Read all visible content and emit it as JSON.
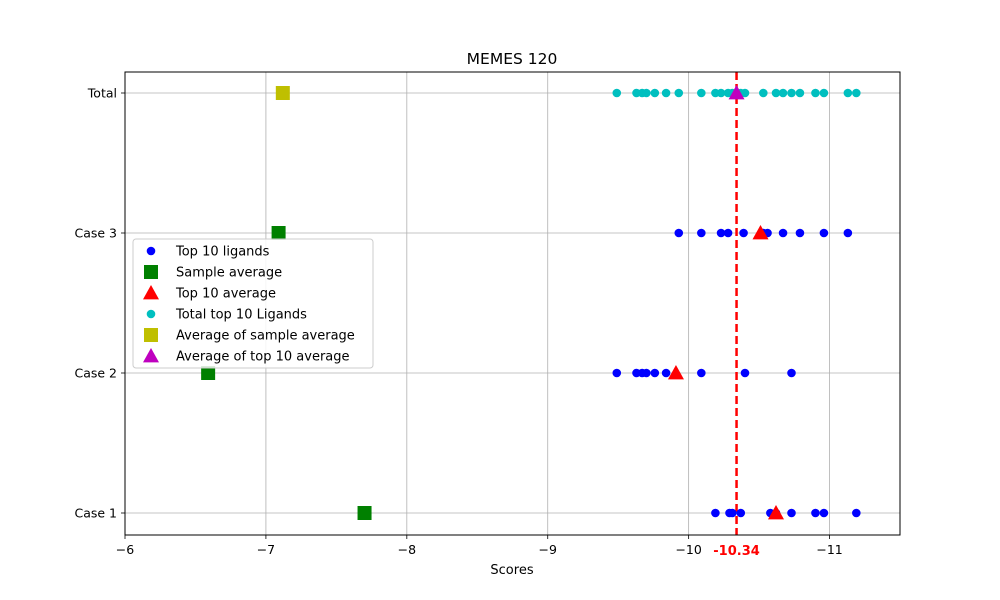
{
  "chart_data": {
    "type": "scatter",
    "title": "MEMES 120",
    "xlabel": "Scores",
    "ylabel": "",
    "xlim": [
      -6,
      -11.5
    ],
    "x_axis_inverted": true,
    "x_ticks": [
      -6,
      -7,
      -8,
      -9,
      -10,
      -11
    ],
    "x_tick_labels": [
      "−6",
      "−7",
      "−8",
      "−9",
      "−10",
      "−11"
    ],
    "categories": [
      "Case 1",
      "Case 2",
      "Case 3",
      "Total"
    ],
    "grid": true,
    "legend_position": "center-left",
    "reference_line": {
      "x": -10.34,
      "label": "-10.34",
      "color": "#ff0000",
      "style": "dashed"
    },
    "series": [
      {
        "name": "Top 10 ligands",
        "marker": "circle",
        "color": "#0000ff",
        "points": [
          {
            "category": "Case 1",
            "x": -10.19
          },
          {
            "category": "Case 1",
            "x": -10.29
          },
          {
            "category": "Case 1",
            "x": -10.31
          },
          {
            "category": "Case 1",
            "x": -10.37
          },
          {
            "category": "Case 1",
            "x": -10.58
          },
          {
            "category": "Case 1",
            "x": -10.62
          },
          {
            "category": "Case 1",
            "x": -10.73
          },
          {
            "category": "Case 1",
            "x": -10.9
          },
          {
            "category": "Case 1",
            "x": -10.96
          },
          {
            "category": "Case 1",
            "x": -11.19
          },
          {
            "category": "Case 2",
            "x": -9.49
          },
          {
            "category": "Case 2",
            "x": -9.63
          },
          {
            "category": "Case 2",
            "x": -9.67
          },
          {
            "category": "Case 2",
            "x": -9.7
          },
          {
            "category": "Case 2",
            "x": -9.76
          },
          {
            "category": "Case 2",
            "x": -9.84
          },
          {
            "category": "Case 2",
            "x": -10.09
          },
          {
            "category": "Case 2",
            "x": -10.4
          },
          {
            "category": "Case 2",
            "x": -10.73
          },
          {
            "category": "Case 3",
            "x": -9.93
          },
          {
            "category": "Case 3",
            "x": -10.09
          },
          {
            "category": "Case 3",
            "x": -10.23
          },
          {
            "category": "Case 3",
            "x": -10.28
          },
          {
            "category": "Case 3",
            "x": -10.39
          },
          {
            "category": "Case 3",
            "x": -10.53
          },
          {
            "category": "Case 3",
            "x": -10.56
          },
          {
            "category": "Case 3",
            "x": -10.67
          },
          {
            "category": "Case 3",
            "x": -10.79
          },
          {
            "category": "Case 3",
            "x": -10.96
          },
          {
            "category": "Case 3",
            "x": -11.13
          }
        ]
      },
      {
        "name": "Sample average",
        "marker": "square",
        "color": "#008000",
        "points": [
          {
            "category": "Case 1",
            "x": -7.7
          },
          {
            "category": "Case 2",
            "x": -6.59
          },
          {
            "category": "Case 3",
            "x": -7.09
          }
        ]
      },
      {
        "name": "Top 10 average",
        "marker": "triangle",
        "color": "#ff0000",
        "points": [
          {
            "category": "Case 1",
            "x": -10.62
          },
          {
            "category": "Case 2",
            "x": -9.91
          },
          {
            "category": "Case 3",
            "x": -10.51
          }
        ]
      },
      {
        "name": "Total top 10 Ligands",
        "marker": "circle",
        "color": "#00bfbf",
        "points": [
          {
            "category": "Total",
            "x": -9.49
          },
          {
            "category": "Total",
            "x": -9.63
          },
          {
            "category": "Total",
            "x": -9.67
          },
          {
            "category": "Total",
            "x": -9.7
          },
          {
            "category": "Total",
            "x": -9.76
          },
          {
            "category": "Total",
            "x": -9.84
          },
          {
            "category": "Total",
            "x": -9.93
          },
          {
            "category": "Total",
            "x": -10.09
          },
          {
            "category": "Total",
            "x": -10.19
          },
          {
            "category": "Total",
            "x": -10.23
          },
          {
            "category": "Total",
            "x": -10.28
          },
          {
            "category": "Total",
            "x": -10.31
          },
          {
            "category": "Total",
            "x": -10.37
          },
          {
            "category": "Total",
            "x": -10.4
          },
          {
            "category": "Total",
            "x": -10.53
          },
          {
            "category": "Total",
            "x": -10.62
          },
          {
            "category": "Total",
            "x": -10.67
          },
          {
            "category": "Total",
            "x": -10.73
          },
          {
            "category": "Total",
            "x": -10.79
          },
          {
            "category": "Total",
            "x": -10.9
          },
          {
            "category": "Total",
            "x": -10.96
          },
          {
            "category": "Total",
            "x": -11.13
          },
          {
            "category": "Total",
            "x": -11.19
          }
        ]
      },
      {
        "name": "Average of sample average",
        "marker": "square",
        "color": "#bfbf00",
        "points": [
          {
            "category": "Total",
            "x": -7.12
          }
        ]
      },
      {
        "name": "Average of top 10 average",
        "marker": "triangle",
        "color": "#bf00bf",
        "points": [
          {
            "category": "Total",
            "x": -10.34
          }
        ]
      }
    ]
  }
}
